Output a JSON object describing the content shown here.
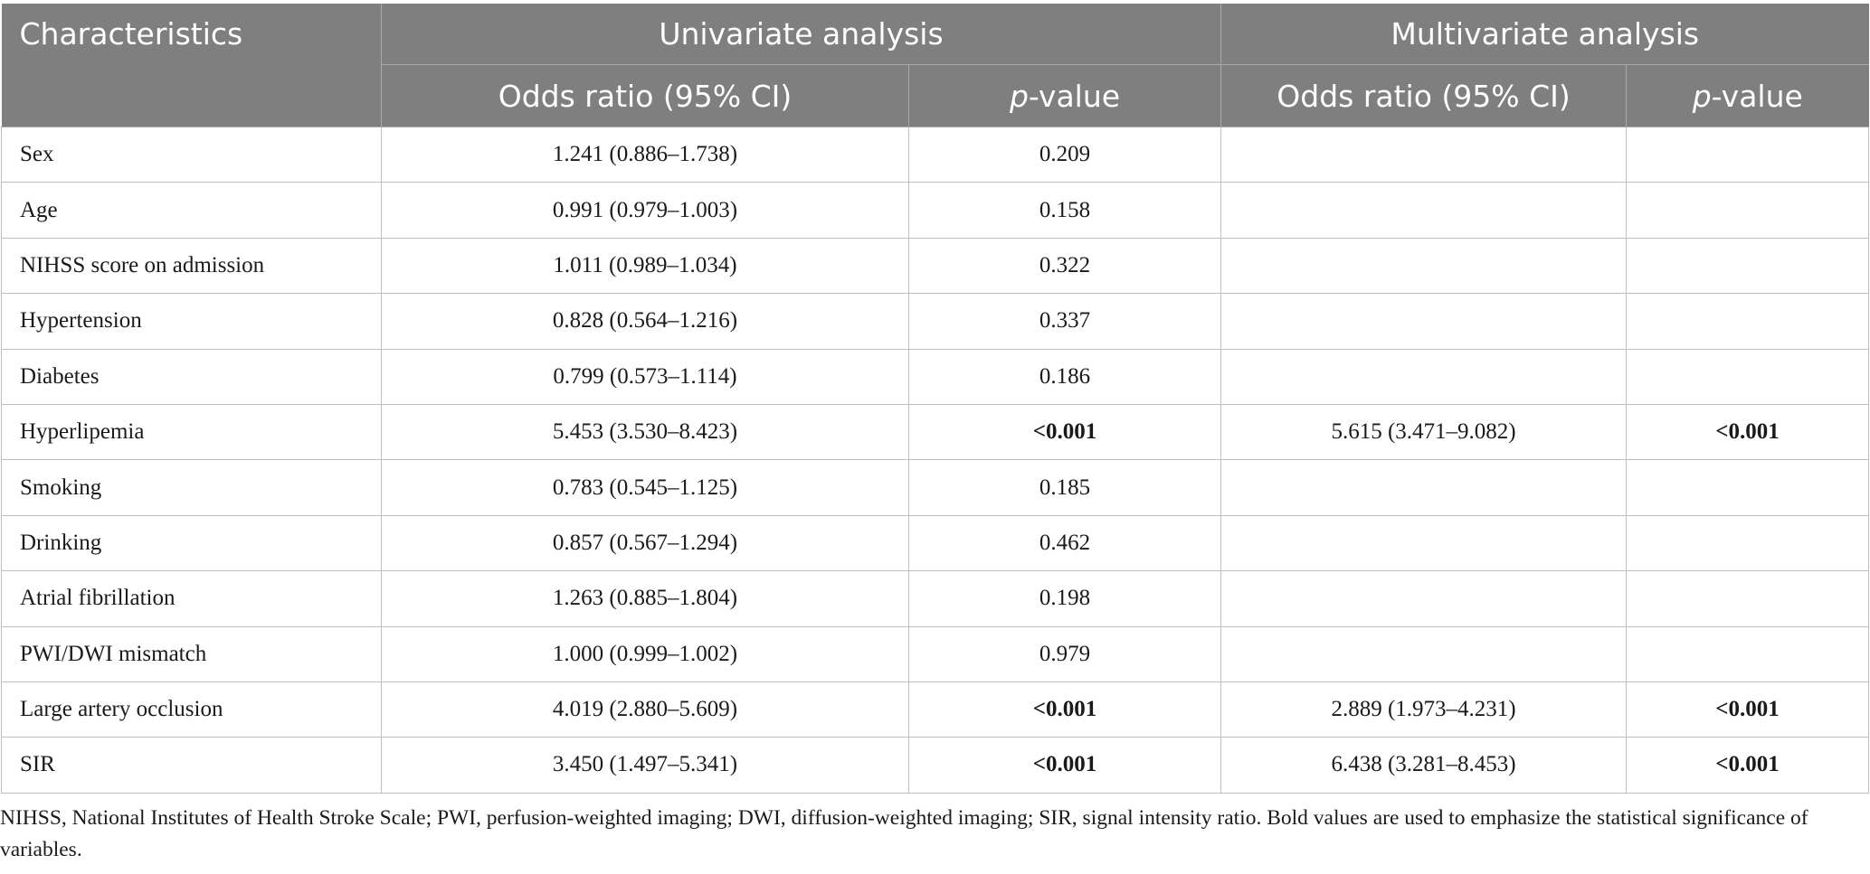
{
  "header": {
    "characteristics": "Characteristics",
    "univariate": "Univariate analysis",
    "multivariate": "Multivariate analysis",
    "odds_ratio": "Odds ratio (95% CI)",
    "p_italic": "p",
    "p_suffix": "-value"
  },
  "rows": [
    {
      "name": "Sex",
      "uni_or": "1.241 (0.886–1.738)",
      "uni_p": "0.209",
      "multi_or": "",
      "multi_p": ""
    },
    {
      "name": "Age",
      "uni_or": "0.991 (0.979–1.003)",
      "uni_p": "0.158",
      "multi_or": "",
      "multi_p": ""
    },
    {
      "name": "NIHSS score on admission",
      "uni_or": "1.011 (0.989–1.034)",
      "uni_p": "0.322",
      "multi_or": "",
      "multi_p": ""
    },
    {
      "name": "Hypertension",
      "uni_or": "0.828 (0.564–1.216)",
      "uni_p": "0.337",
      "multi_or": "",
      "multi_p": ""
    },
    {
      "name": "Diabetes",
      "uni_or": "0.799 (0.573–1.114)",
      "uni_p": "0.186",
      "multi_or": "",
      "multi_p": ""
    },
    {
      "name": "Hyperlipemia",
      "uni_or": "5.453 (3.530–8.423)",
      "uni_p": "<0.001",
      "multi_or": "5.615 (3.471–9.082)",
      "multi_p": "<0.001"
    },
    {
      "name": "Smoking",
      "uni_or": "0.783 (0.545–1.125)",
      "uni_p": "0.185",
      "multi_or": "",
      "multi_p": ""
    },
    {
      "name": "Drinking",
      "uni_or": "0.857 (0.567–1.294)",
      "uni_p": "0.462",
      "multi_or": "",
      "multi_p": ""
    },
    {
      "name": "Atrial fibrillation",
      "uni_or": "1.263 (0.885–1.804)",
      "uni_p": "0.198",
      "multi_or": "",
      "multi_p": ""
    },
    {
      "name": "PWI/DWI mismatch",
      "uni_or": "1.000 (0.999–1.002)",
      "uni_p": "0.979",
      "multi_or": "",
      "multi_p": ""
    },
    {
      "name": "Large artery occlusion",
      "uni_or": "4.019 (2.880–5.609)",
      "uni_p": "<0.001",
      "multi_or": "2.889 (1.973–4.231)",
      "multi_p": "<0.001"
    },
    {
      "name": "SIR",
      "uni_or": "3.450 (1.497–5.341)",
      "uni_p": "<0.001",
      "multi_or": "6.438 (3.281–8.453)",
      "multi_p": "<0.001"
    }
  ],
  "footnote": "NIHSS, National Institutes of Health Stroke Scale; PWI, perfusion-weighted imaging; DWI, diffusion-weighted imaging; SIR, signal intensity ratio. Bold values are used to emphasize the statistical significance of variables.",
  "colors": {
    "header_bg": "#7f7f7f",
    "header_text": "#ffffff",
    "grid": "#bfbfbf"
  }
}
